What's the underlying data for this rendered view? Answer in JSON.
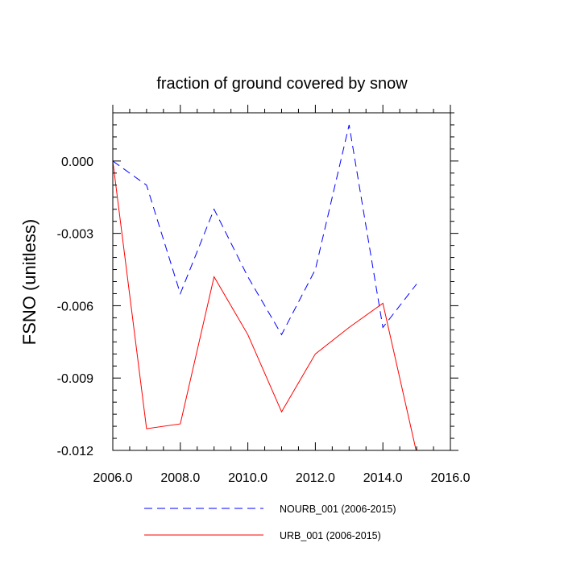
{
  "chart_data": {
    "type": "line",
    "title": "fraction of ground covered by snow",
    "xlabel": "",
    "ylabel": "FSNO  (unitless)",
    "xlim": [
      2006.0,
      2016.0
    ],
    "ylim": [
      -0.012,
      0.002
    ],
    "xticks": [
      2006.0,
      2008.0,
      2010.0,
      2012.0,
      2014.0,
      2016.0
    ],
    "xtick_labels": [
      "2006.0",
      "2008.0",
      "2010.0",
      "2012.0",
      "2014.0",
      "2016.0"
    ],
    "yticks": [
      0.0,
      -0.003,
      -0.006,
      -0.009,
      -0.012
    ],
    "ytick_labels": [
      "0.000",
      "-0.003",
      "-0.006",
      "-0.009",
      "-0.012"
    ],
    "x": [
      2006,
      2007,
      2008,
      2009,
      2010,
      2011,
      2012,
      2013,
      2014,
      2015
    ],
    "series": [
      {
        "name": "NOURB_001 (2006-2015)",
        "color": "#0000ff",
        "dash": "dashed",
        "values": [
          0.0,
          -0.001,
          -0.0055,
          -0.002,
          -0.0048,
          -0.0072,
          -0.0045,
          0.0015,
          -0.0069,
          -0.0051
        ]
      },
      {
        "name": "URB_001 (2006-2015)",
        "color": "#ff0000",
        "dash": "solid",
        "values": [
          0.0,
          -0.0111,
          -0.0109,
          -0.0048,
          -0.0072,
          -0.0104,
          -0.008,
          -0.0069,
          -0.0059,
          -0.0121
        ]
      }
    ],
    "legend_position": "bottom",
    "grid": false
  }
}
